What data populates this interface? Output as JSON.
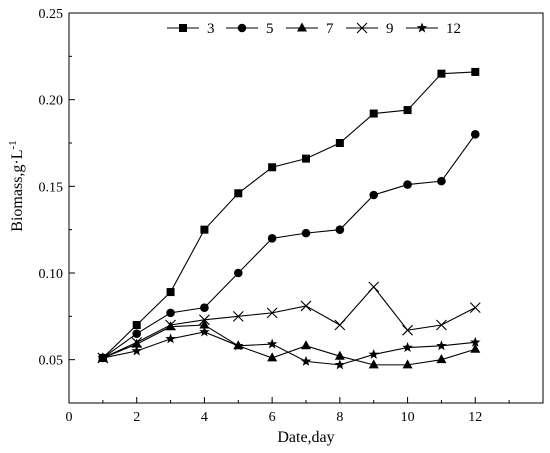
{
  "chart_data": {
    "type": "line",
    "xlabel": "Date,day",
    "ylabel": "Biomass,g·L",
    "ylabel_sup": "-1",
    "xlim": [
      0,
      14
    ],
    "ylim": [
      0.025,
      0.25
    ],
    "xticks": [
      0,
      2,
      4,
      6,
      8,
      10,
      12
    ],
    "xtick_labels": [
      "0",
      "2",
      "4",
      "6",
      "8",
      "10",
      "12"
    ],
    "yticks": [
      0.05,
      0.1,
      0.15,
      0.2,
      0.25
    ],
    "ytick_labels": [
      "0.05",
      "0.10",
      "0.15",
      "0.20",
      "0.25"
    ],
    "grid": false,
    "legend_position": "top",
    "x": [
      1,
      2,
      3,
      4,
      5,
      6,
      7,
      8,
      9,
      10,
      11,
      12
    ],
    "series": [
      {
        "name": "3",
        "marker": "square",
        "values": [
          0.051,
          0.07,
          0.089,
          0.125,
          0.146,
          0.161,
          0.166,
          0.175,
          0.192,
          0.194,
          0.215,
          0.216
        ]
      },
      {
        "name": "5",
        "marker": "circle",
        "values": [
          0.051,
          0.065,
          0.077,
          0.08,
          0.1,
          0.12,
          0.123,
          0.125,
          0.145,
          0.151,
          0.153,
          0.18
        ]
      },
      {
        "name": "7",
        "marker": "triangle",
        "values": [
          0.051,
          0.059,
          0.069,
          0.07,
          0.058,
          0.051,
          0.058,
          0.052,
          0.047,
          0.047,
          0.05,
          0.056
        ]
      },
      {
        "name": "9",
        "marker": "x",
        "values": [
          0.051,
          0.06,
          0.07,
          0.073,
          0.075,
          0.077,
          0.081,
          0.07,
          0.092,
          0.067,
          0.07,
          0.08
        ]
      },
      {
        "name": "12",
        "marker": "star",
        "values": [
          0.051,
          0.055,
          0.062,
          0.066,
          0.058,
          0.059,
          0.049,
          0.047,
          0.053,
          0.057,
          0.058,
          0.06
        ]
      }
    ]
  }
}
